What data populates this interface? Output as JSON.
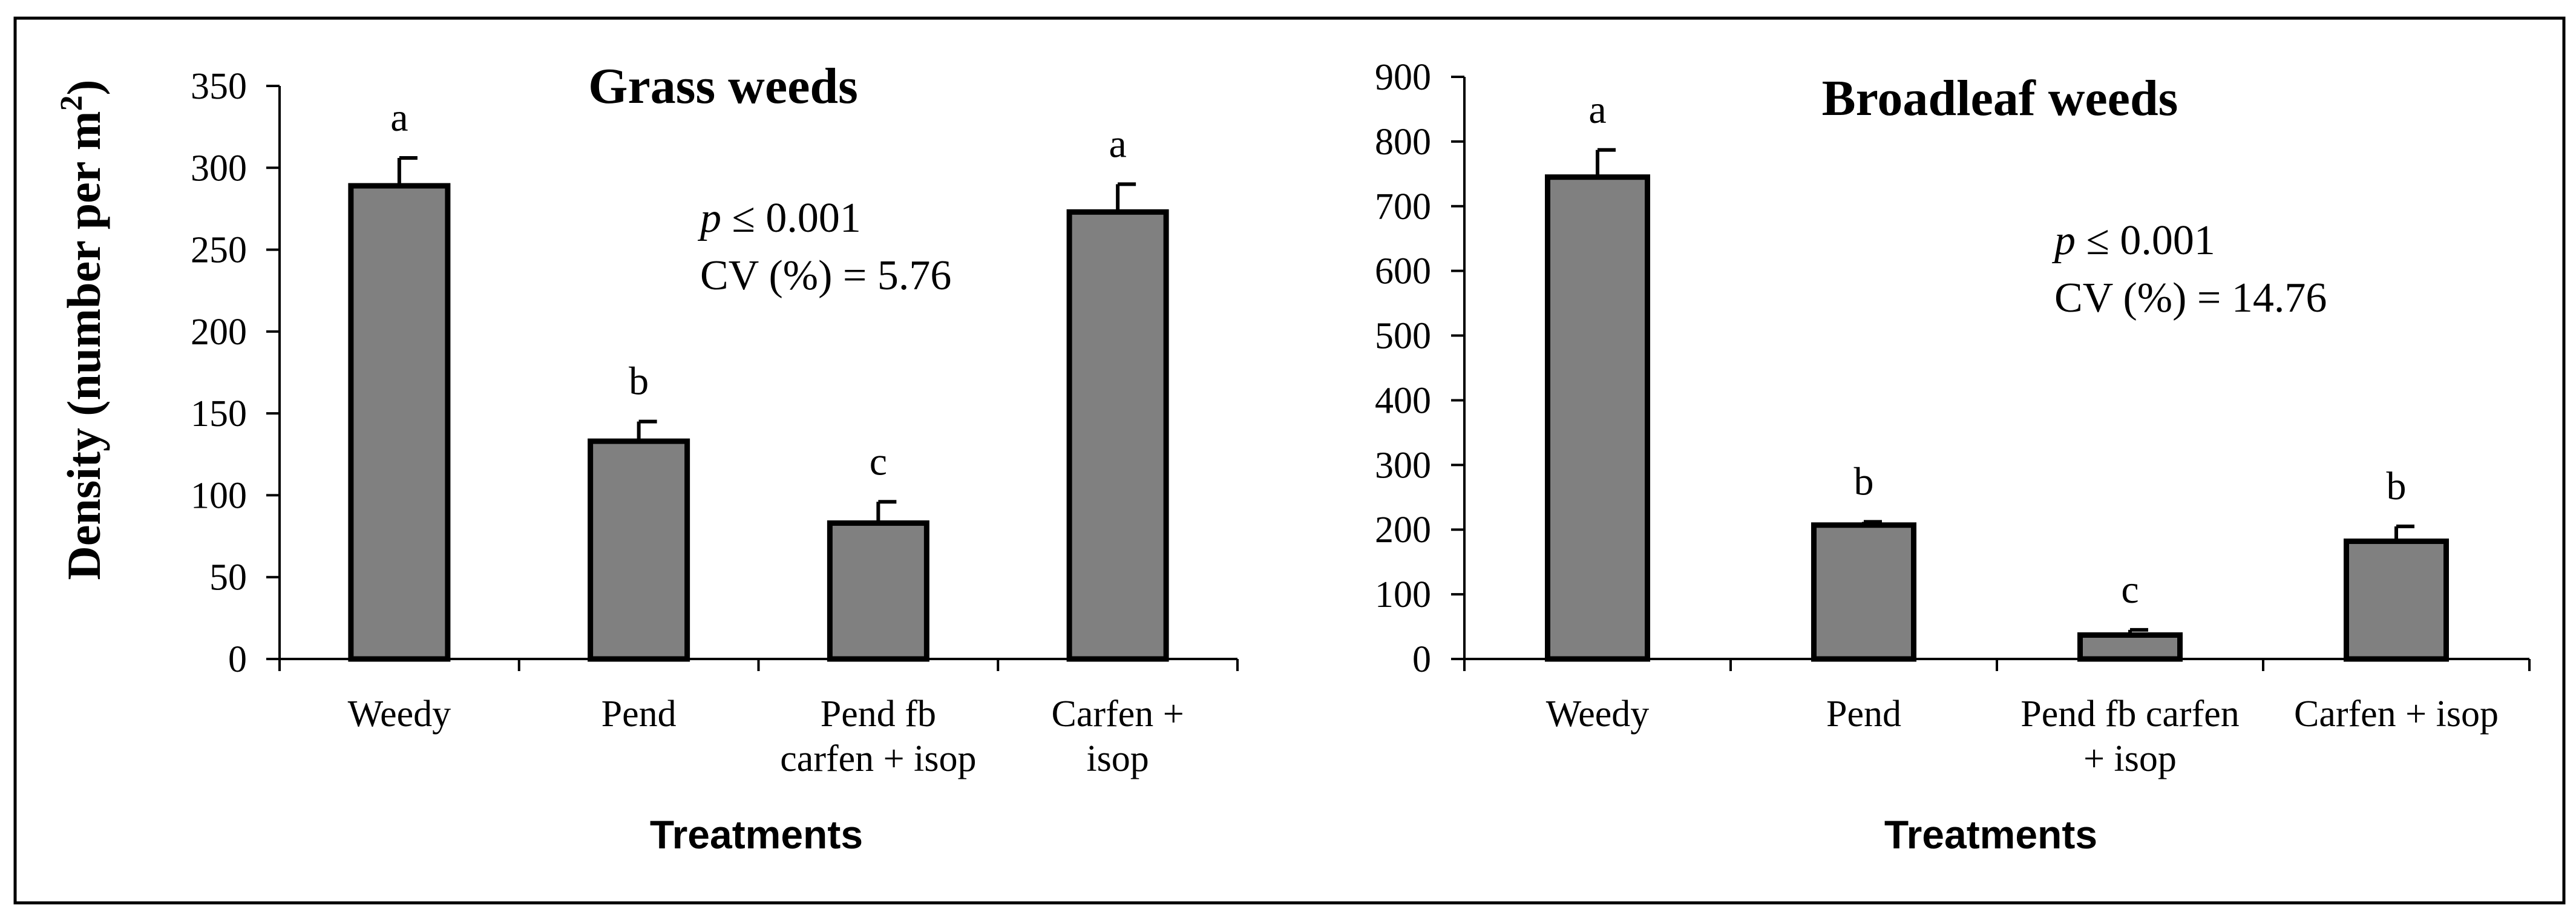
{
  "chart_data": [
    {
      "type": "bar",
      "title": "Grass weeds",
      "xlabel": "Treatments",
      "ylabel": "Density (number per m",
      "ylabel_superscript": "2",
      "ylabel_close": ")",
      "ylim": [
        0,
        350
      ],
      "ytick_step": 50,
      "yticks": [
        "0",
        "50",
        "100",
        "150",
        "200",
        "250",
        "300",
        "350"
      ],
      "categories": [
        [
          "Weedy"
        ],
        [
          "Pend"
        ],
        [
          "Pend fb",
          "carfen + isop"
        ],
        [
          "Carfen +",
          "isop"
        ]
      ],
      "values": [
        289,
        133,
        83,
        273
      ],
      "errors": [
        17,
        12,
        13,
        17
      ],
      "significance": [
        "a",
        "b",
        "c",
        "a"
      ],
      "stat_p_symbol": "p",
      "stat_p_rest": " ≤ 0.001",
      "stat_cv": "CV (%) = 5.76",
      "bar_color": "#808080"
    },
    {
      "type": "bar",
      "title": "Broadleaf weeds",
      "xlabel": "Treatments",
      "ylim": [
        0,
        900
      ],
      "ytick_step": 100,
      "yticks": [
        "0",
        "100",
        "200",
        "300",
        "400",
        "500",
        "600",
        "700",
        "800",
        "900"
      ],
      "categories": [
        [
          "Weedy"
        ],
        [
          "Pend"
        ],
        [
          "Pend fb carfen",
          "+ isop"
        ],
        [
          "Carfen + isop"
        ]
      ],
      "values": [
        745,
        207,
        37,
        182
      ],
      "errors": [
        42,
        5,
        8,
        23
      ],
      "significance": [
        "a",
        "b",
        "c",
        "b"
      ],
      "stat_p_symbol": "p",
      "stat_p_rest": " ≤ 0.001",
      "stat_cv": "CV (%) = 14.76",
      "bar_color": "#808080"
    }
  ]
}
